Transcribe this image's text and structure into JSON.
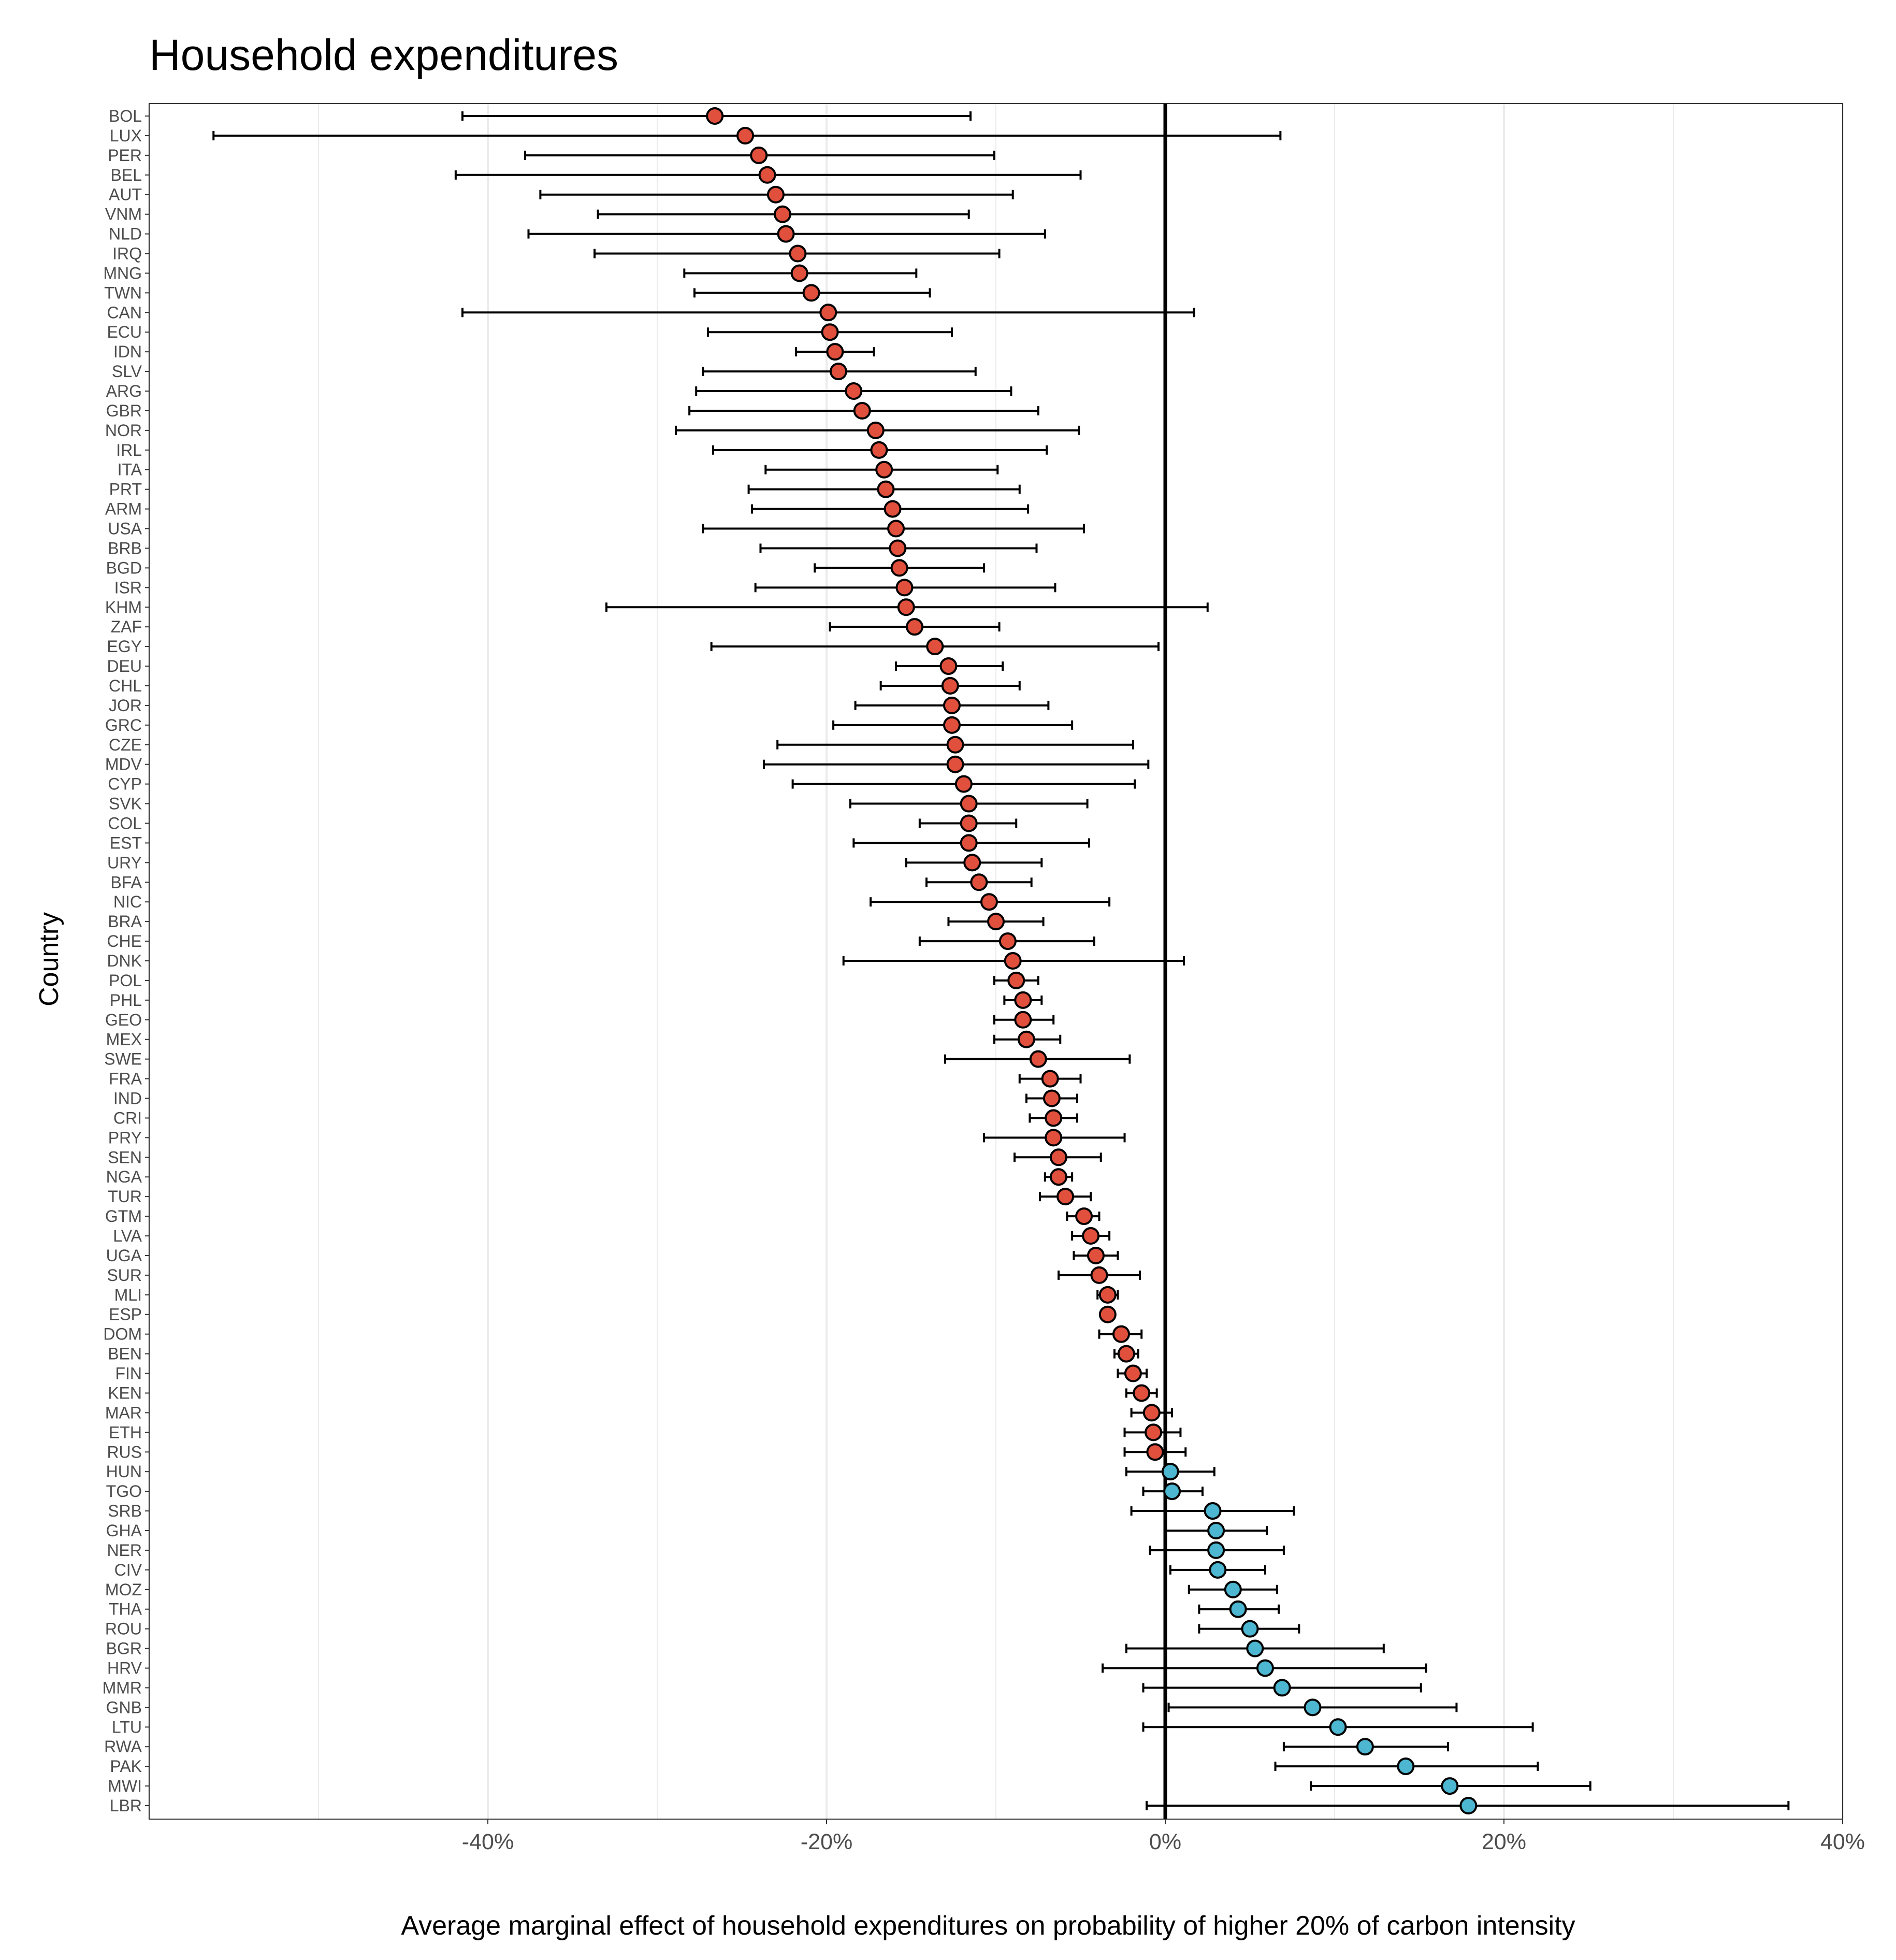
{
  "chart_data": {
    "type": "scatter",
    "title": "Household expenditures",
    "xlabel": "Average marginal effect of household expenditures on probability of higher 20% of carbon intensity",
    "ylabel": "Country",
    "xlim": [
      -60,
      40
    ],
    "x_ticks": [
      -40,
      -20,
      0,
      20,
      40
    ],
    "x_tick_labels": [
      "-40%",
      "-20%",
      "0%",
      "20%",
      "40%"
    ],
    "grid": "vertical major and minor gridlines",
    "reference_line_x": 0,
    "colors": {
      "negative": "#e1503c",
      "positive": "#4db6d0",
      "point_edge": "#000000",
      "errorbar": "#000000",
      "grid": "#ebebeb"
    },
    "points": [
      {
        "country": "BOL",
        "value": -26.6,
        "low": -41.5,
        "high": -11.5
      },
      {
        "country": "LUX",
        "value": -24.8,
        "low": -56.2,
        "high": 6.8
      },
      {
        "country": "PER",
        "value": -24.0,
        "low": -37.8,
        "high": -10.1
      },
      {
        "country": "BEL",
        "value": -23.5,
        "low": -41.9,
        "high": -5.0
      },
      {
        "country": "AUT",
        "value": -23.0,
        "low": -36.9,
        "high": -9.0
      },
      {
        "country": "VNM",
        "value": -22.6,
        "low": -33.5,
        "high": -11.6
      },
      {
        "country": "NLD",
        "value": -22.4,
        "low": -37.6,
        "high": -7.1
      },
      {
        "country": "IRQ",
        "value": -21.7,
        "low": -33.7,
        "high": -9.8
      },
      {
        "country": "MNG",
        "value": -21.6,
        "low": -28.4,
        "high": -14.7
      },
      {
        "country": "TWN",
        "value": -20.9,
        "low": -27.8,
        "high": -13.9
      },
      {
        "country": "CAN",
        "value": -19.9,
        "low": -41.5,
        "high": 1.7
      },
      {
        "country": "ECU",
        "value": -19.8,
        "low": -27.0,
        "high": -12.6
      },
      {
        "country": "IDN",
        "value": -19.5,
        "low": -21.8,
        "high": -17.2
      },
      {
        "country": "SLV",
        "value": -19.3,
        "low": -27.3,
        "high": -11.2
      },
      {
        "country": "ARG",
        "value": -18.4,
        "low": -27.7,
        "high": -9.1
      },
      {
        "country": "GBR",
        "value": -17.9,
        "low": -28.1,
        "high": -7.5
      },
      {
        "country": "NOR",
        "value": -17.1,
        "low": -28.9,
        "high": -5.1
      },
      {
        "country": "IRL",
        "value": -16.9,
        "low": -26.7,
        "high": -7.0
      },
      {
        "country": "ITA",
        "value": -16.6,
        "low": -23.6,
        "high": -9.9
      },
      {
        "country": "PRT",
        "value": -16.5,
        "low": -24.6,
        "high": -8.6
      },
      {
        "country": "ARM",
        "value": -16.1,
        "low": -24.4,
        "high": -8.1
      },
      {
        "country": "USA",
        "value": -15.9,
        "low": -27.3,
        "high": -4.8
      },
      {
        "country": "BRB",
        "value": -15.8,
        "low": -23.9,
        "high": -7.6
      },
      {
        "country": "BGD",
        "value": -15.7,
        "low": -20.7,
        "high": -10.7
      },
      {
        "country": "ISR",
        "value": -15.4,
        "low": -24.2,
        "high": -6.5
      },
      {
        "country": "KHM",
        "value": -15.3,
        "low": -33.0,
        "high": 2.5
      },
      {
        "country": "ZAF",
        "value": -14.8,
        "low": -19.8,
        "high": -9.8
      },
      {
        "country": "EGY",
        "value": -13.6,
        "low": -26.8,
        "high": -0.4
      },
      {
        "country": "DEU",
        "value": -12.8,
        "low": -15.9,
        "high": -9.6
      },
      {
        "country": "CHL",
        "value": -12.7,
        "low": -16.8,
        "high": -8.6
      },
      {
        "country": "JOR",
        "value": -12.6,
        "low": -18.3,
        "high": -6.9
      },
      {
        "country": "GRC",
        "value": -12.6,
        "low": -19.6,
        "high": -5.5
      },
      {
        "country": "CZE",
        "value": -12.4,
        "low": -22.9,
        "high": -1.9
      },
      {
        "country": "MDV",
        "value": -12.4,
        "low": -23.7,
        "high": -1.0
      },
      {
        "country": "CYP",
        "value": -11.9,
        "low": -22.0,
        "high": -1.8
      },
      {
        "country": "SVK",
        "value": -11.6,
        "low": -18.6,
        "high": -4.6
      },
      {
        "country": "COL",
        "value": -11.6,
        "low": -14.5,
        "high": -8.8
      },
      {
        "country": "EST",
        "value": -11.6,
        "low": -18.4,
        "high": -4.5
      },
      {
        "country": "URY",
        "value": -11.4,
        "low": -15.3,
        "high": -7.3
      },
      {
        "country": "BFA",
        "value": -11.0,
        "low": -14.1,
        "high": -7.9
      },
      {
        "country": "NIC",
        "value": -10.4,
        "low": -17.4,
        "high": -3.3
      },
      {
        "country": "BRA",
        "value": -10.0,
        "low": -12.8,
        "high": -7.2
      },
      {
        "country": "CHE",
        "value": -9.3,
        "low": -14.5,
        "high": -4.2
      },
      {
        "country": "DNK",
        "value": -9.0,
        "low": -19.0,
        "high": 1.1
      },
      {
        "country": "POL",
        "value": -8.8,
        "low": -10.1,
        "high": -7.5
      },
      {
        "country": "PHL",
        "value": -8.4,
        "low": -9.5,
        "high": -7.3
      },
      {
        "country": "GEO",
        "value": -8.4,
        "low": -10.1,
        "high": -6.6
      },
      {
        "country": "MEX",
        "value": -8.2,
        "low": -10.1,
        "high": -6.2
      },
      {
        "country": "SWE",
        "value": -7.5,
        "low": -13.0,
        "high": -2.1
      },
      {
        "country": "FRA",
        "value": -6.8,
        "low": -8.6,
        "high": -5.0
      },
      {
        "country": "IND",
        "value": -6.7,
        "low": -8.2,
        "high": -5.2
      },
      {
        "country": "CRI",
        "value": -6.6,
        "low": -8.0,
        "high": -5.2
      },
      {
        "country": "PRY",
        "value": -6.6,
        "low": -10.7,
        "high": -2.4
      },
      {
        "country": "SEN",
        "value": -6.3,
        "low": -8.9,
        "high": -3.8
      },
      {
        "country": "NGA",
        "value": -6.3,
        "low": -7.1,
        "high": -5.5
      },
      {
        "country": "TUR",
        "value": -5.9,
        "low": -7.4,
        "high": -4.4
      },
      {
        "country": "GTM",
        "value": -4.8,
        "low": -5.8,
        "high": -3.9
      },
      {
        "country": "LVA",
        "value": -4.4,
        "low": -5.5,
        "high": -3.3
      },
      {
        "country": "UGA",
        "value": -4.1,
        "low": -5.4,
        "high": -2.8
      },
      {
        "country": "SUR",
        "value": -3.9,
        "low": -6.3,
        "high": -1.5
      },
      {
        "country": "MLI",
        "value": -3.4,
        "low": -4.0,
        "high": -2.8
      },
      {
        "country": "ESP",
        "value": -3.4,
        "low": -3.6,
        "high": -3.2
      },
      {
        "country": "DOM",
        "value": -2.6,
        "low": -3.9,
        "high": -1.4
      },
      {
        "country": "BEN",
        "value": -2.3,
        "low": -3.0,
        "high": -1.6
      },
      {
        "country": "FIN",
        "value": -1.9,
        "low": -2.8,
        "high": -1.1
      },
      {
        "country": "KEN",
        "value": -1.4,
        "low": -2.3,
        "high": -0.5
      },
      {
        "country": "MAR",
        "value": -0.8,
        "low": -2.0,
        "high": 0.4
      },
      {
        "country": "ETH",
        "value": -0.7,
        "low": -2.4,
        "high": 0.9
      },
      {
        "country": "RUS",
        "value": -0.6,
        "low": -2.4,
        "high": 1.2
      },
      {
        "country": "HUN",
        "value": 0.3,
        "low": -2.3,
        "high": 2.9
      },
      {
        "country": "TGO",
        "value": 0.4,
        "low": -1.3,
        "high": 2.2
      },
      {
        "country": "SRB",
        "value": 2.8,
        "low": -2.0,
        "high": 7.6
      },
      {
        "country": "GHA",
        "value": 3.0,
        "low": 0.0,
        "high": 6.0
      },
      {
        "country": "NER",
        "value": 3.0,
        "low": -0.9,
        "high": 7.0
      },
      {
        "country": "CIV",
        "value": 3.1,
        "low": 0.3,
        "high": 5.9
      },
      {
        "country": "MOZ",
        "value": 4.0,
        "low": 1.4,
        "high": 6.6
      },
      {
        "country": "THA",
        "value": 4.3,
        "low": 2.0,
        "high": 6.7
      },
      {
        "country": "ROU",
        "value": 5.0,
        "low": 2.0,
        "high": 7.9
      },
      {
        "country": "BGR",
        "value": 5.3,
        "low": -2.3,
        "high": 12.9
      },
      {
        "country": "HRV",
        "value": 5.9,
        "low": -3.7,
        "high": 15.4
      },
      {
        "country": "MMR",
        "value": 6.9,
        "low": -1.3,
        "high": 15.1
      },
      {
        "country": "GNB",
        "value": 8.7,
        "low": 0.2,
        "high": 17.2
      },
      {
        "country": "LTU",
        "value": 10.2,
        "low": -1.3,
        "high": 21.7
      },
      {
        "country": "RWA",
        "value": 11.8,
        "low": 7.0,
        "high": 16.7
      },
      {
        "country": "PAK",
        "value": 14.2,
        "low": 6.5,
        "high": 22.0
      },
      {
        "country": "MWI",
        "value": 16.8,
        "low": 8.6,
        "high": 25.1
      },
      {
        "country": "LBR",
        "value": 17.9,
        "low": -1.1,
        "high": 36.8
      }
    ]
  }
}
